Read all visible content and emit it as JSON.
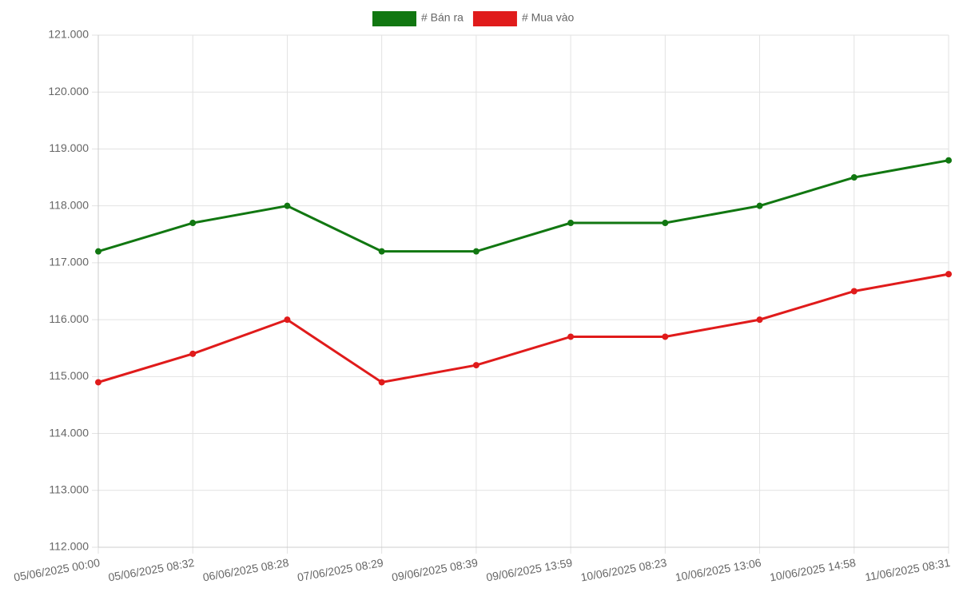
{
  "chart_data": {
    "type": "line",
    "categories": [
      "05/06/2025 00:00",
      "05/06/2025 08:32",
      "06/06/2025 08:28",
      "07/06/2025 08:29",
      "09/06/2025 08:39",
      "09/06/2025 13:59",
      "10/06/2025 08:23",
      "10/06/2025 13:06",
      "10/06/2025 14:58",
      "11/06/2025 08:31"
    ],
    "series": [
      {
        "name": "# Bán ra",
        "color": "#117711",
        "values": [
          117200,
          117700,
          118000,
          117200,
          117200,
          117700,
          117700,
          118000,
          118500,
          118800
        ]
      },
      {
        "name": "# Mua vào",
        "color": "#e01b1b",
        "values": [
          114900,
          115400,
          116000,
          114900,
          115200,
          115700,
          115700,
          116000,
          116500,
          116800
        ]
      }
    ],
    "ylim": [
      112000,
      121000
    ],
    "yticks": [
      {
        "value": 112000,
        "label": "112.000"
      },
      {
        "value": 113000,
        "label": "113.000"
      },
      {
        "value": 114000,
        "label": "114.000"
      },
      {
        "value": 115000,
        "label": "115.000"
      },
      {
        "value": 116000,
        "label": "116.000"
      },
      {
        "value": 117000,
        "label": "117.000"
      },
      {
        "value": 118000,
        "label": "118.000"
      },
      {
        "value": 119000,
        "label": "119.000"
      },
      {
        "value": 120000,
        "label": "120.000"
      },
      {
        "value": 121000,
        "label": "121.000"
      }
    ],
    "grid": true,
    "legend": "top"
  }
}
